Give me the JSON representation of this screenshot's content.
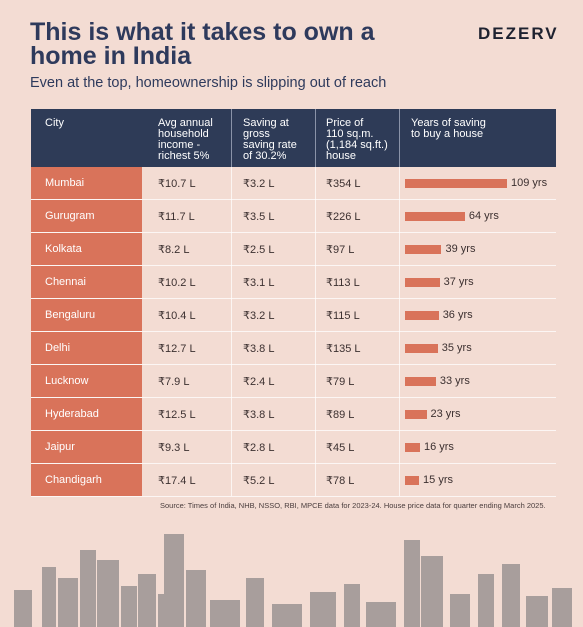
{
  "header": {
    "title": "This is what it takes to own a home in India",
    "subtitle": "Even at the top, homeownership is slipping out of reach",
    "brand": "DEZERV"
  },
  "table": {
    "columns": [
      "City",
      "Avg annual\nhousehold\nincome -\nrichest 5%",
      "Saving at\ngross\nsaving rate\nof 30.2%",
      "Price of\n110 sq.m.\n(1,184 sq.ft.)\nhouse",
      "Years of saving\nto buy a house"
    ]
  },
  "chart_data": {
    "type": "bar",
    "categories": [
      "Mumbai",
      "Gurugram",
      "Kolkata",
      "Chennai",
      "Bengaluru",
      "Delhi",
      "Lucknow",
      "Hyderabad",
      "Jaipur",
      "Chandigarh"
    ],
    "income": [
      "₹10.7 L",
      "₹11.7 L",
      "₹8.2 L",
      "₹10.2 L",
      "₹10.4 L",
      "₹12.7 L",
      "₹7.9 L",
      "₹12.5 L",
      "₹9.3 L",
      "₹17.4 L"
    ],
    "saving": [
      "₹3.2 L",
      "₹3.5 L",
      "₹2.5 L",
      "₹3.1 L",
      "₹3.2 L",
      "₹3.8 L",
      "₹2.4 L",
      "₹3.8 L",
      "₹2.8 L",
      "₹5.2 L"
    ],
    "price": [
      "₹354 L",
      "₹226 L",
      "₹97 L",
      "₹113 L",
      "₹115 L",
      "₹135 L",
      "₹79 L",
      "₹89 L",
      "₹45 L",
      "₹78 L"
    ],
    "values": [
      109,
      64,
      39,
      37,
      36,
      35,
      33,
      23,
      16,
      15
    ],
    "value_labels": [
      "109 yrs",
      "64 yrs",
      "39 yrs",
      "37 yrs",
      "36 yrs",
      "35 yrs",
      "33 yrs",
      "23 yrs",
      "16 yrs",
      "15 yrs"
    ],
    "bar_color": "#d9735a"
  },
  "footer": {
    "source": "Source: Times of India, NHB, NSSO, RBI, MPCE data for 2023-24. House price data for quarter ending March 2025."
  },
  "colors": {
    "background": "#f3dcd3",
    "header": "#2e3b57",
    "accent": "#d9735a",
    "title": "#2e3a5c"
  }
}
